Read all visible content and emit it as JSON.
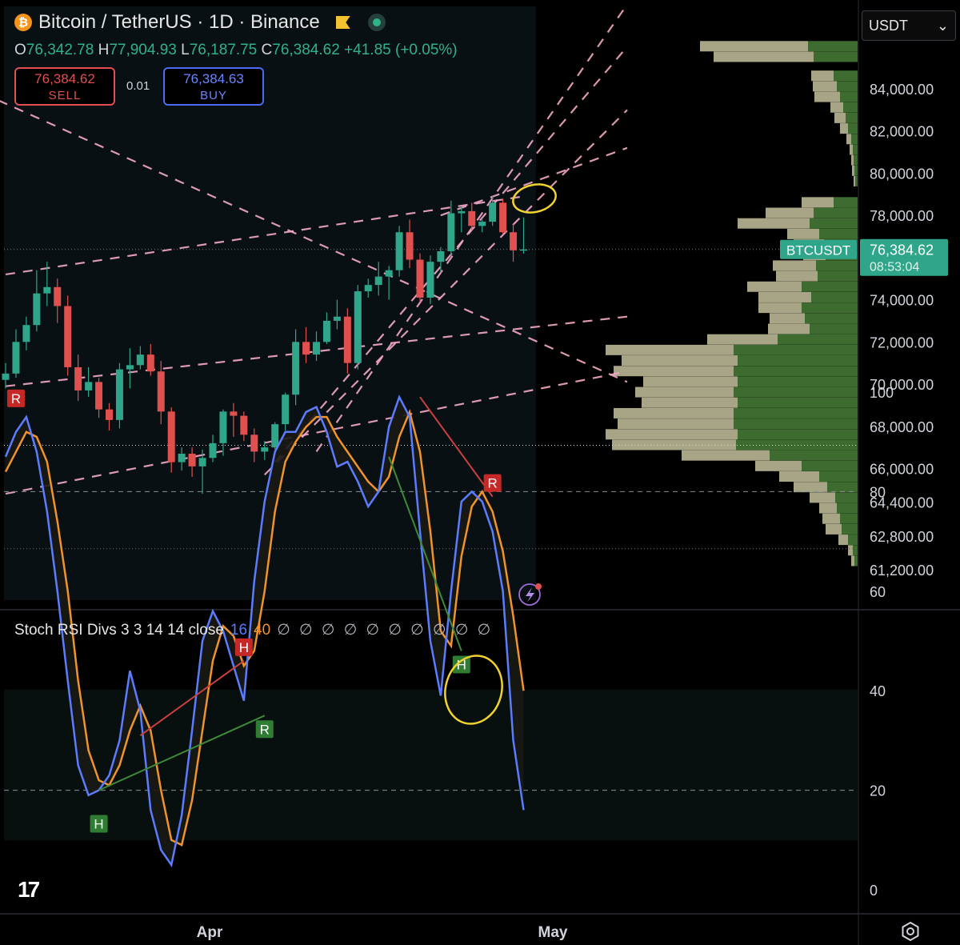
{
  "header": {
    "symbol_title": "Bitcoin / TetherUS · 1D · Binance",
    "coin_symbol": "₿",
    "ohlc": {
      "o_label": "O",
      "o": "76,342.78",
      "h_label": "H",
      "h": "77,904.93",
      "l_label": "L",
      "l": "76,187.75",
      "c_label": "C",
      "c": "76,384.62",
      "change": "+41.85 (+0.05%)"
    }
  },
  "trade": {
    "sell_price": "76,384.62",
    "sell_label": "SELL",
    "spread": "0.01",
    "buy_price": "76,384.63",
    "buy_label": "BUY"
  },
  "currency_select": {
    "value": "USDT",
    "chevron": "⌄"
  },
  "price_tag": {
    "symbol": "BTCUSDT",
    "price": "76,384.62",
    "countdown": "08:53:04"
  },
  "indicator": {
    "name": "Stoch RSI Divs 3 3 14 14 close",
    "k_value": "16",
    "d_value": "40",
    "empty_markers": "∅ ∅ ∅ ∅ ∅ ∅ ∅ ∅ ∅ ∅"
  },
  "branding": {
    "logo": "17"
  },
  "colors": {
    "bull": "#2fa58a",
    "bear": "#e0504f",
    "k_line": "#5b7cff",
    "d_line": "#f0932b",
    "trend": "#f4a9c8",
    "highlight": "#f2d22e",
    "vol_up": "#3e6b30",
    "vol_down": "#a8a486"
  },
  "chart_data": [
    {
      "type": "candlestick",
      "title": "",
      "y_axis_ticks": [
        84000,
        82000,
        80000,
        78000,
        74000,
        72000,
        70000,
        68000,
        66000,
        64400,
        62800,
        61200
      ],
      "y_axis_tick_labels": [
        "84,000.00",
        "82,000.00",
        "80,000.00",
        "78,000.00",
        "74,000.00",
        "72,000.00",
        "70,000.00",
        "68,000.00",
        "66,000.00",
        "64,400.00",
        "62,800.00",
        "61,200.00"
      ],
      "x_axis_labels": [
        "Apr",
        "May"
      ],
      "last_price": 76384.62,
      "candles": [
        [
          70200,
          71000,
          69800,
          70500
        ],
        [
          70500,
          72600,
          70300,
          72000
        ],
        [
          72000,
          73200,
          71600,
          72800
        ],
        [
          72800,
          75400,
          72500,
          74300
        ],
        [
          74300,
          75800,
          73700,
          74600
        ],
        [
          74600,
          75000,
          72900,
          73700
        ],
        [
          73700,
          74200,
          70400,
          70800
        ],
        [
          70800,
          71400,
          69200,
          69700
        ],
        [
          69700,
          70800,
          69400,
          70100
        ],
        [
          70100,
          70300,
          68400,
          68800
        ],
        [
          68800,
          69100,
          67800,
          68300
        ],
        [
          68300,
          71000,
          67900,
          70700
        ],
        [
          70700,
          71700,
          69800,
          70900
        ],
        [
          70900,
          71800,
          70700,
          71400
        ],
        [
          71400,
          71900,
          70400,
          70600
        ],
        [
          70600,
          71100,
          68100,
          68700
        ],
        [
          68700,
          68900,
          65800,
          66300
        ],
        [
          66300,
          67000,
          65900,
          66700
        ],
        [
          66700,
          67000,
          65600,
          66100
        ],
        [
          66100,
          66900,
          64800,
          66500
        ],
        [
          66500,
          67600,
          66300,
          67200
        ],
        [
          67200,
          68800,
          66600,
          68700
        ],
        [
          68700,
          69100,
          67500,
          68500
        ],
        [
          68500,
          68700,
          67300,
          67600
        ],
        [
          67600,
          67900,
          66300,
          66800
        ],
        [
          66800,
          67300,
          66400,
          67000
        ],
        [
          67000,
          68200,
          66900,
          68100
        ],
        [
          68100,
          69600,
          67800,
          69500
        ],
        [
          69500,
          72600,
          69000,
          72000
        ],
        [
          72000,
          72700,
          71000,
          71400
        ],
        [
          71400,
          72500,
          71100,
          72000
        ],
        [
          72000,
          73400,
          71900,
          73000
        ],
        [
          73000,
          74000,
          72600,
          73200
        ],
        [
          73200,
          73600,
          70500,
          71000
        ],
        [
          71000,
          74700,
          70700,
          74400
        ],
        [
          74400,
          75000,
          74100,
          74700
        ],
        [
          74700,
          75800,
          74200,
          75100
        ],
        [
          75100,
          75600,
          74000,
          75400
        ],
        [
          75400,
          77500,
          75100,
          77200
        ],
        [
          77200,
          77800,
          75500,
          75900
        ],
        [
          75900,
          76200,
          73900,
          74100
        ],
        [
          74100,
          76100,
          73800,
          75800
        ],
        [
          75800,
          76500,
          75300,
          76300
        ],
        [
          76300,
          78700,
          76100,
          78100
        ],
        [
          78100,
          78400,
          77200,
          78200
        ],
        [
          78200,
          78600,
          77300,
          77500
        ],
        [
          77500,
          77800,
          77200,
          77700
        ],
        [
          77700,
          78900,
          77500,
          78600
        ],
        [
          78600,
          78800,
          77100,
          77200
        ],
        [
          77200,
          77600,
          75800,
          76342.78
        ],
        [
          76342.78,
          77904.93,
          76187.75,
          76384.62
        ]
      ],
      "trendlines": [
        [
          [
            0,
            75200
          ],
          [
            50,
            78900
          ]
        ],
        [
          [
            0,
            69900
          ],
          [
            60,
            73200
          ]
        ],
        [
          [
            0,
            64800
          ],
          [
            60,
            70600
          ]
        ],
        [
          [
            -10,
            85500
          ],
          [
            60,
            70100
          ]
        ],
        [
          [
            25,
            65700
          ],
          [
            60,
            83000
          ]
        ],
        [
          [
            26,
            66300
          ],
          [
            60,
            86000
          ]
        ],
        [
          [
            30,
            66800
          ],
          [
            60,
            88000
          ]
        ],
        [
          [
            42,
            78000
          ],
          [
            60,
            81200
          ]
        ]
      ]
    },
    {
      "type": "line",
      "title": "",
      "y_axis_ticks": [
        100,
        80,
        60,
        40,
        20,
        0
      ],
      "series": [
        {
          "name": "K",
          "values": [
            87,
            92,
            95,
            88,
            76,
            60,
            42,
            25,
            19,
            20,
            23,
            30,
            44,
            36,
            16,
            8,
            5,
            15,
            32,
            50,
            56,
            52,
            45,
            38,
            62,
            78,
            88,
            92,
            92,
            96,
            97,
            92,
            85,
            86,
            82,
            77,
            80,
            93,
            99,
            95,
            72,
            50,
            39,
            60,
            78,
            80,
            78,
            72,
            60,
            30,
            16
          ]
        },
        {
          "name": "D",
          "values": [
            84,
            88,
            92,
            91,
            86,
            74,
            60,
            42,
            28,
            22,
            21,
            25,
            32,
            37,
            32,
            20,
            10,
            9,
            18,
            32,
            46,
            53,
            51,
            45,
            48,
            60,
            76,
            86,
            90,
            93,
            95,
            95,
            91,
            88,
            85,
            82,
            80,
            83,
            91,
            96,
            88,
            72,
            52,
            49,
            67,
            77,
            80,
            76,
            68,
            55,
            40
          ]
        }
      ],
      "divergence_lines": [
        {
          "from": [
            13,
            31
          ],
          "to": [
            23,
            46
          ],
          "color": "bear"
        },
        {
          "from": [
            9,
            20
          ],
          "to": [
            25,
            35
          ],
          "color": "bull"
        },
        {
          "from": [
            40,
            99
          ],
          "to": [
            47,
            79
          ],
          "color": "bear"
        },
        {
          "from": [
            37,
            87
          ],
          "to": [
            44,
            48
          ],
          "color": "bull"
        }
      ],
      "markers": [
        {
          "label": "R",
          "x": 1,
          "y": 96,
          "type": "bear"
        },
        {
          "label": "H",
          "x": 9,
          "y": 16,
          "type": "bull"
        },
        {
          "label": "H",
          "x": 23,
          "y": 46,
          "type": "bear"
        },
        {
          "label": "R",
          "x": 25,
          "y": 35,
          "type": "bull"
        },
        {
          "label": "H",
          "x": 44,
          "y": 48,
          "type": "bull"
        },
        {
          "label": "R",
          "x": 47,
          "y": 79,
          "type": "bear"
        }
      ]
    }
  ],
  "volume_profile": [
    [
      86000,
      62,
      135
    ],
    [
      85500,
      55,
      125
    ],
    [
      84600,
      30,
      28
    ],
    [
      84100,
      26,
      30
    ],
    [
      83600,
      22,
      32
    ],
    [
      83100,
      18,
      16
    ],
    [
      82600,
      15,
      14
    ],
    [
      82100,
      12,
      10
    ],
    [
      81600,
      8,
      6
    ],
    [
      81100,
      6,
      4
    ],
    [
      80600,
      5,
      3
    ],
    [
      80100,
      4,
      3
    ],
    [
      79600,
      3,
      2
    ],
    [
      78600,
      30,
      40
    ],
    [
      78100,
      55,
      60
    ],
    [
      77600,
      60,
      90
    ],
    [
      77100,
      48,
      40
    ],
    [
      76600,
      42,
      38
    ],
    [
      76100,
      40,
      28
    ],
    [
      75600,
      52,
      54
    ],
    [
      75100,
      50,
      52
    ],
    [
      74600,
      70,
      68
    ],
    [
      74100,
      58,
      66
    ],
    [
      73600,
      70,
      54
    ],
    [
      73100,
      66,
      44
    ],
    [
      72600,
      60,
      52
    ],
    [
      72100,
      100,
      88
    ],
    [
      71600,
      155,
      160
    ],
    [
      71100,
      150,
      145
    ],
    [
      70600,
      155,
      150
    ],
    [
      70100,
      150,
      118
    ],
    [
      69600,
      155,
      123
    ],
    [
      69100,
      150,
      120
    ],
    [
      68600,
      155,
      150
    ],
    [
      68100,
      155,
      145
    ],
    [
      67600,
      150,
      165
    ],
    [
      67100,
      152,
      155
    ],
    [
      66600,
      110,
      110
    ],
    [
      66100,
      70,
      58
    ],
    [
      65600,
      48,
      50
    ],
    [
      65100,
      38,
      42
    ],
    [
      64600,
      28,
      32
    ],
    [
      64100,
      26,
      22
    ],
    [
      63600,
      22,
      22
    ],
    [
      63100,
      20,
      20
    ],
    [
      62600,
      12,
      12
    ],
    [
      62100,
      6,
      6
    ],
    [
      61600,
      4,
      4
    ]
  ]
}
